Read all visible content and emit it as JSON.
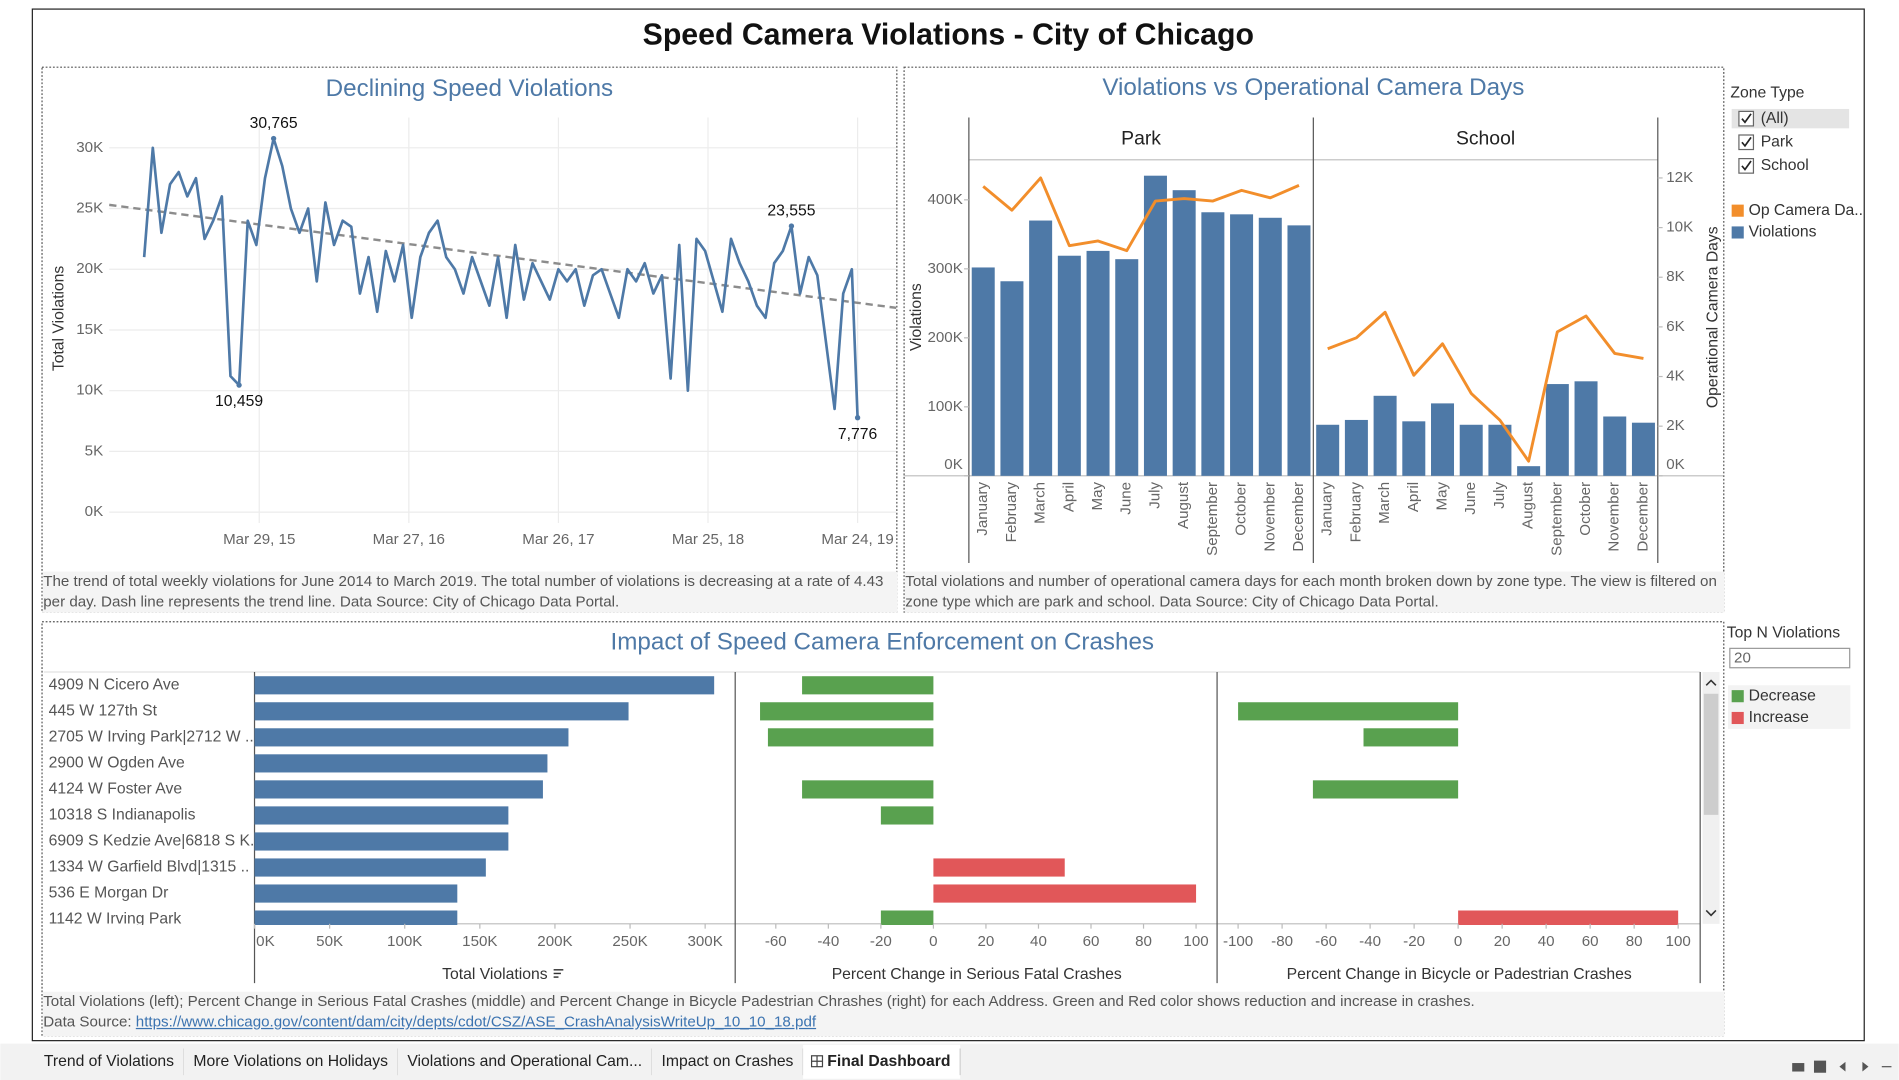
{
  "dashboard": {
    "title": "Speed Camera Violations - City of Chicago",
    "tabs": [
      "Trend of Violations",
      "More Violations on Holidays",
      "Violations and Operational Cam...",
      "Impact on Crashes",
      "Final Dashboard"
    ],
    "active_tab": 4,
    "filters": {
      "zone_type": {
        "title": "Zone Type",
        "options": [
          "(All)",
          "Park",
          "School"
        ]
      },
      "top_n": {
        "title": "Top N Violations",
        "value": 20
      }
    }
  },
  "chart_data": [
    {
      "type": "line",
      "title": "Declining Speed Violations",
      "y_label": "Total Violations",
      "x": [
        "2014-06-22",
        "2014-07-13",
        "2014-08-03",
        "2014-08-24",
        "2014-09-14",
        "2014-10-05",
        "2014-10-26",
        "2014-11-16",
        "2014-12-07",
        "2014-12-28",
        "2015-01-18",
        "2015-02-08",
        "2015-03-01",
        "2015-03-22",
        "2015-04-12",
        "2015-05-03",
        "2015-05-24",
        "2015-06-14",
        "2015-07-05",
        "2015-07-26",
        "2015-08-16",
        "2015-09-06",
        "2015-09-27",
        "2015-10-18",
        "2015-11-08",
        "2015-11-29",
        "2015-12-20",
        "2016-01-10",
        "2016-01-31",
        "2016-02-21",
        "2016-03-13",
        "2016-04-03",
        "2016-04-24",
        "2016-05-15",
        "2016-06-05",
        "2016-06-26",
        "2016-07-17",
        "2016-08-07",
        "2016-08-28",
        "2016-09-18",
        "2016-10-09",
        "2016-10-30",
        "2016-11-20",
        "2016-12-11",
        "2017-01-01",
        "2017-01-22",
        "2017-02-12",
        "2017-03-05",
        "2017-03-26",
        "2017-04-16",
        "2017-05-07",
        "2017-05-28",
        "2017-06-18",
        "2017-07-09",
        "2017-07-30",
        "2017-08-20",
        "2017-09-10",
        "2017-10-01",
        "2017-10-22",
        "2017-11-12",
        "2017-12-03",
        "2017-12-24",
        "2018-01-14",
        "2018-02-04",
        "2018-02-25",
        "2018-03-18",
        "2018-04-08",
        "2018-04-29",
        "2018-05-20",
        "2018-06-10",
        "2018-07-01",
        "2018-07-22",
        "2018-08-12",
        "2018-09-02",
        "2018-09-23",
        "2018-10-14",
        "2018-11-04",
        "2018-11-25",
        "2018-12-16",
        "2019-01-06",
        "2019-01-27",
        "2019-02-17",
        "2019-03-10",
        "2019-03-24"
      ],
      "values": [
        21000,
        30000,
        23000,
        27000,
        28000,
        26000,
        27500,
        22500,
        24000,
        26000,
        11200,
        10459,
        24000,
        22000,
        27500,
        30765,
        28500,
        25000,
        23000,
        25000,
        19000,
        25500,
        22000,
        24000,
        23500,
        18000,
        21000,
        16500,
        21500,
        19000,
        22000,
        16000,
        21000,
        23000,
        24000,
        21000,
        20000,
        18000,
        21000,
        19000,
        17000,
        21000,
        16000,
        22000,
        17500,
        20500,
        19000,
        17500,
        20000,
        19000,
        20000,
        17000,
        19500,
        20000,
        18000,
        16000,
        20000,
        19000,
        20500,
        18000,
        19500,
        11000,
        22000,
        10000,
        22500,
        21500,
        19000,
        16500,
        22500,
        20500,
        19000,
        17000,
        16000,
        20500,
        21500,
        23555,
        18000,
        21000,
        19500,
        14000,
        8500,
        18000,
        20000,
        7776
      ],
      "value_labels": [
        null,
        null,
        null,
        null,
        null,
        null,
        null,
        null,
        null,
        null,
        null,
        "10,459",
        null,
        null,
        null,
        "30,765",
        null,
        null,
        null,
        null,
        null,
        null,
        null,
        null,
        null,
        null,
        null,
        null,
        null,
        null,
        null,
        null,
        null,
        null,
        null,
        null,
        null,
        null,
        null,
        null,
        null,
        null,
        null,
        null,
        null,
        null,
        null,
        null,
        null,
        null,
        null,
        null,
        null,
        null,
        null,
        null,
        null,
        null,
        null,
        null,
        null,
        null,
        null,
        null,
        null,
        null,
        null,
        null,
        null,
        null,
        null,
        null,
        null,
        null,
        null,
        "23,555",
        null,
        null,
        null,
        null,
        null,
        null,
        null,
        "7,776"
      ],
      "color": "#4e79a7",
      "trend": {
        "x": [
          "2014-03-29",
          "2019-06-26"
        ],
        "values": [
          25300,
          16820
        ],
        "color": "#8c8c8c"
      },
      "xlim": [
        "2014-03-29",
        "2019-06-26"
      ],
      "ylim": [
        -900,
        32500
      ],
      "xticks": [
        {
          "value": "2015-03-29",
          "label": "Mar 29, 15"
        },
        {
          "value": "2016-03-27",
          "label": "Mar 27, 16"
        },
        {
          "value": "2017-03-26",
          "label": "Mar 26, 17"
        },
        {
          "value": "2018-03-25",
          "label": "Mar 25, 18"
        },
        {
          "value": "2019-03-24",
          "label": "Mar 24, 19"
        }
      ],
      "yticks": [
        {
          "value": 0,
          "label": "0K"
        },
        {
          "value": 5000,
          "label": "5K"
        },
        {
          "value": 10000,
          "label": "10K"
        },
        {
          "value": 15000,
          "label": "15K"
        },
        {
          "value": 20000,
          "label": "20K"
        },
        {
          "value": 25000,
          "label": "25K"
        },
        {
          "value": 30000,
          "label": "30K"
        }
      ],
      "grid": true,
      "caption": "The trend of total weekly violations for June 2014 to March 2019. The total number of violations is decreasing at a rate of 4.43 per day. Dash line represents the trend line. Data Source: City of Chicago Data Portal."
    },
    {
      "type": "bar_line",
      "title": "Violations vs Operational Camera Days",
      "y_label": "Violations",
      "y2_label": "Operational Camera Days",
      "categories": [
        "January",
        "February",
        "March",
        "April",
        "May",
        "June",
        "July",
        "August",
        "September",
        "October",
        "November",
        "December"
      ],
      "measures": [
        {
          "name": "Op Camera Da..",
          "color": "#f28e2b",
          "axis": "y2"
        },
        {
          "name": "Violations",
          "color": "#4e79a7"
        }
      ],
      "panels": [
        {
          "name": "Park",
          "values": [
            [
              11660,
              10700,
              12000,
              9270,
              9460,
              9070,
              11070,
              11170,
              11070,
              11500,
              11200,
              11700
            ],
            [
              302000,
              282000,
              370000,
              319000,
              326000,
              314000,
              435000,
              414000,
              382000,
              379000,
              374000,
              363000
            ]
          ]
        },
        {
          "name": "School",
          "values": [
            [
              5120,
              5560,
              6590,
              4050,
              5320,
              3320,
              2240,
              590,
              5800,
              6440,
              4930,
              4730
            ],
            [
              74000,
              81000,
              116000,
              79000,
              105000,
              74000,
              74000,
              14000,
              133000,
              137000,
              86000,
              77000
            ]
          ]
        }
      ],
      "ylim": [
        0,
        458000
      ],
      "yticks": [
        {
          "value": 0,
          "label": "0K"
        },
        {
          "value": 100000,
          "label": "100K"
        },
        {
          "value": 200000,
          "label": "200K"
        },
        {
          "value": 300000,
          "label": "300K"
        },
        {
          "value": 400000,
          "label": "400K"
        }
      ],
      "y2lim": [
        0,
        12730
      ],
      "y2ticks": [
        {
          "value": 0,
          "label": "0K"
        },
        {
          "value": 2000,
          "label": "2K"
        },
        {
          "value": 4000,
          "label": "4K"
        },
        {
          "value": 6000,
          "label": "6K"
        },
        {
          "value": 8000,
          "label": "8K"
        },
        {
          "value": 10000,
          "label": "10K"
        },
        {
          "value": 12000,
          "label": "12K"
        }
      ],
      "caption": "Total violations and number of operational camera days for each month broken down by zone type.  The view is filtered on zone type which are park and school.  Data Source: City of Chicago Data Portal."
    },
    {
      "type": "bar_multi",
      "title": "Impact of Speed Camera Enforcement on Crashes",
      "categories": [
        "4909 N Cicero Ave",
        "445 W 127th St",
        "2705 W Irving Park|2712 W ..",
        "2900 W Ogden Ave",
        "4124 W Foster Ave",
        "10318 S Indianapolis",
        "6909 S Kedzie Ave|6818 S K..",
        "1334 W Garfield Blvd|1315 ..",
        "536 E Morgan Dr",
        "1142 W Irving Park"
      ],
      "panels": [
        {
          "x_label": "Total Violations",
          "color": "#4e79a7",
          "values": [
            306000,
            249000,
            209000,
            195000,
            192000,
            169000,
            169000,
            154000,
            135000,
            135000
          ],
          "xlim": [
            0,
            320000
          ],
          "xticks": [
            {
              "value": 0,
              "label": "0K"
            },
            {
              "value": 50000,
              "label": "50K"
            },
            {
              "value": 100000,
              "label": "100K"
            },
            {
              "value": 150000,
              "label": "150K"
            },
            {
              "value": 200000,
              "label": "200K"
            },
            {
              "value": 250000,
              "label": "250K"
            },
            {
              "value": 300000,
              "label": "300K"
            }
          ]
        },
        {
          "x_label": "Percent Change in Serious Fatal Crashes",
          "values": [
            -50,
            -66,
            -63,
            null,
            -50,
            -20,
            null,
            50,
            100,
            -20
          ],
          "xlim": [
            -75,
            108
          ],
          "xticks": [
            -60,
            -40,
            -20,
            0,
            20,
            40,
            60,
            80,
            100
          ]
        },
        {
          "x_label": "Percent Change in Bicycle or Padestrian Crashes",
          "values": [
            null,
            -100,
            -43,
            null,
            -66,
            null,
            null,
            null,
            null,
            100
          ],
          "xlim": [
            -109,
            110
          ],
          "xticks": [
            -100,
            -80,
            -60,
            -40,
            -20,
            0,
            20,
            40,
            60,
            80,
            100
          ]
        }
      ],
      "legend": [
        {
          "label": "Decrease",
          "color": "#59a14f"
        },
        {
          "label": "Increase",
          "color": "#e15759"
        }
      ],
      "caption": "Total Violations (left); Percent Change in Serious Fatal Crashes (middle) and Percent Change in Bicycle Padestrian Chrashes (right) for each Address. Green and Red color shows reduction and increase in crashes.",
      "source_label": "Data Source:",
      "source_url": "https://www.chicago.gov/content/dam/city/depts/cdot/CSZ/ASE_CrashAnalysisWriteUp_10_10_18.pdf"
    }
  ]
}
